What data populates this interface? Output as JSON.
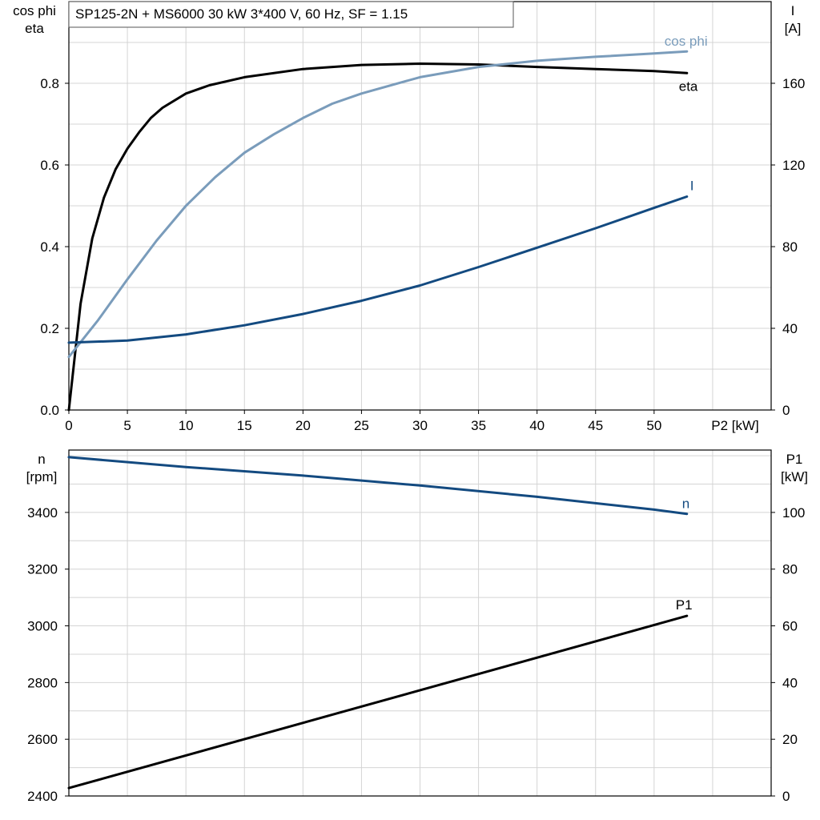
{
  "chart_data": [
    {
      "type": "line",
      "title": "SP125-2N + MS6000   30 kW   3*400 V, 60 Hz, SF = 1.15",
      "xlabel": "P2 [kW]",
      "ylabel_left": [
        "cos phi",
        "eta"
      ],
      "ylabel_right": [
        "I",
        "[A]"
      ],
      "xlim": [
        0,
        60
      ],
      "ylim_left": [
        0,
        1.0
      ],
      "ylim_right": [
        0,
        200
      ],
      "x_ticks": [
        0,
        5,
        10,
        15,
        20,
        25,
        30,
        35,
        40,
        45,
        50
      ],
      "y_ticks_left": [
        "0.0",
        "0.2",
        "0.4",
        "0.6",
        "0.8"
      ],
      "y_ticks_right": [
        "0",
        "40",
        "80",
        "120",
        "160"
      ],
      "grid": true,
      "series": [
        {
          "name": "eta",
          "axis": "left",
          "color": "#000000",
          "x": [
            0,
            0.5,
            1,
            2,
            3,
            4,
            5,
            6,
            7,
            8,
            10,
            12,
            15,
            20,
            25,
            30,
            35,
            40,
            45,
            50,
            52.8
          ],
          "y": [
            0.0,
            0.13,
            0.26,
            0.42,
            0.52,
            0.59,
            0.64,
            0.68,
            0.715,
            0.74,
            0.775,
            0.795,
            0.815,
            0.835,
            0.845,
            0.848,
            0.846,
            0.84,
            0.835,
            0.83,
            0.825
          ]
        },
        {
          "name": "cos phi",
          "axis": "left",
          "color": "#7a9cbb",
          "x": [
            0,
            2.5,
            5,
            7.5,
            10,
            12.5,
            15,
            17.5,
            20,
            22.5,
            25,
            30,
            35,
            40,
            45,
            50,
            52.8
          ],
          "y": [
            0.13,
            0.22,
            0.32,
            0.415,
            0.5,
            0.57,
            0.63,
            0.675,
            0.715,
            0.75,
            0.775,
            0.815,
            0.84,
            0.855,
            0.865,
            0.873,
            0.878
          ]
        },
        {
          "name": "I",
          "axis": "right",
          "color": "#134a80",
          "x": [
            0,
            5,
            10,
            15,
            20,
            25,
            30,
            35,
            40,
            45,
            50,
            52.8
          ],
          "y": [
            33,
            34,
            37,
            41.5,
            47,
            53.5,
            61,
            70,
            79.5,
            89,
            99,
            104.5
          ]
        }
      ]
    },
    {
      "type": "line",
      "xlim": [
        0,
        60
      ],
      "ylabel_left": [
        "n",
        "[rpm]"
      ],
      "ylabel_right": [
        "P1",
        "[kW]"
      ],
      "ylim_left": [
        2400,
        3620
      ],
      "ylim_right": [
        0,
        122
      ],
      "y_ticks_left": [
        "2400",
        "2600",
        "2800",
        "3000",
        "3200",
        "3400"
      ],
      "y_ticks_right": [
        "0",
        "20",
        "40",
        "60",
        "80",
        "100"
      ],
      "grid": true,
      "series": [
        {
          "name": "n",
          "axis": "left",
          "color": "#134a80",
          "x": [
            0,
            10,
            20,
            30,
            40,
            50,
            52.8
          ],
          "y": [
            3595,
            3560,
            3530,
            3495,
            3455,
            3410,
            3395
          ]
        },
        {
          "name": "P1",
          "axis": "right",
          "color": "#000000",
          "x": [
            0,
            52.8
          ],
          "y": [
            2.8,
            63.5
          ]
        }
      ]
    }
  ]
}
